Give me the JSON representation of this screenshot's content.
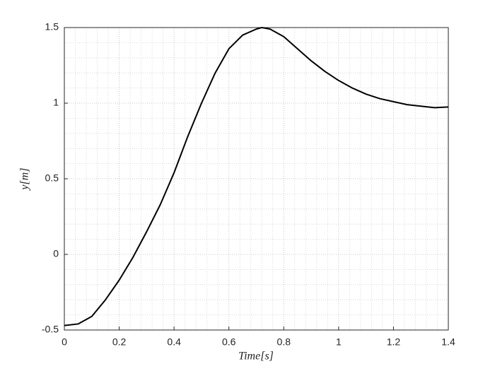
{
  "chart_data": {
    "type": "line",
    "x_label": "Time[s]",
    "y_label": "y[m]",
    "x": [
      0,
      0.05,
      0.1,
      0.15,
      0.2,
      0.25,
      0.3,
      0.35,
      0.4,
      0.45,
      0.5,
      0.55,
      0.6,
      0.65,
      0.7,
      0.72,
      0.75,
      0.8,
      0.85,
      0.9,
      0.95,
      1.0,
      1.05,
      1.1,
      1.15,
      1.2,
      1.25,
      1.3,
      1.35,
      1.4
    ],
    "series": [
      {
        "color": "#000000",
        "values": [
          -0.47,
          -0.46,
          -0.41,
          -0.3,
          -0.17,
          -0.02,
          0.15,
          0.33,
          0.54,
          0.78,
          1.0,
          1.2,
          1.36,
          1.45,
          1.49,
          1.5,
          1.49,
          1.44,
          1.36,
          1.28,
          1.21,
          1.15,
          1.1,
          1.06,
          1.03,
          1.01,
          0.99,
          0.98,
          0.97,
          0.975
        ]
      }
    ],
    "xlim": [
      0,
      1.4
    ],
    "xticks": [
      0,
      0.2,
      0.4,
      0.6,
      0.8,
      1,
      1.2,
      1.4
    ],
    "ylim": [
      -0.5,
      1.5
    ],
    "yticks": [
      -0.5,
      0,
      0.5,
      1,
      1.5
    ],
    "grid": true,
    "minor_grid": true
  }
}
